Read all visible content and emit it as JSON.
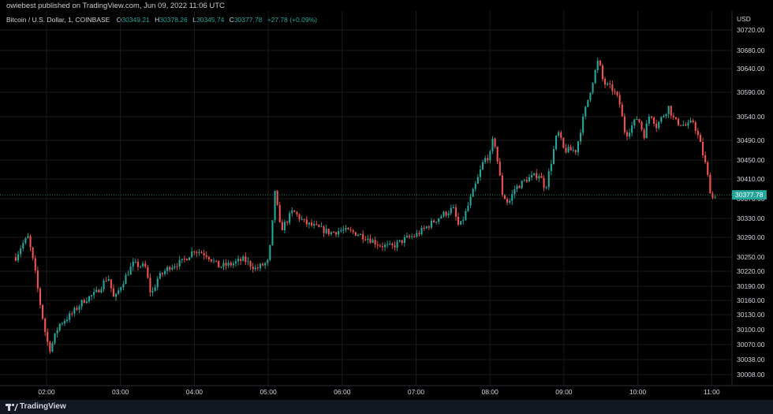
{
  "publisher": "owiebest published on TradingView.com, Jun 09, 2022 11:06 UTC",
  "legend": {
    "symbol": "Bitcoin / U.S. Dollar, 1, COINBASE",
    "o_label": "O",
    "o_value": "30349.21",
    "h_label": "H",
    "h_value": "30378.26",
    "l_label": "L",
    "l_value": "30345.74",
    "c_label": "C",
    "c_value": "30377.78",
    "change": "+27.78 (+0.09%)"
  },
  "currency": "USD",
  "footer": {
    "brand": "TradingView",
    "logo": "tradingview-logo-icon"
  },
  "colors": {
    "up": "#26a69a",
    "down": "#ef5350",
    "background": "#000000",
    "grid": "#1b1b1b",
    "last_price_tag": "#26a69a"
  },
  "chart_data": {
    "type": "candlestick",
    "symbol": "BTCUSD",
    "timeframe": "1",
    "y_ticks": [
      30720.0,
      30680.0,
      30640.0,
      30590.0,
      30540.0,
      30490.0,
      30450.0,
      30410.0,
      30370.0,
      30330.0,
      30290.0,
      30250.0,
      30220.0,
      30190.0,
      30160.0,
      30130.0,
      30100.0,
      30070.0,
      30038.0,
      30008.0
    ],
    "y_tick_labels": [
      "30720.00",
      "30680.00",
      "30640.00",
      "30590.00",
      "30540.00",
      "30490.00",
      "30450.00",
      "30410.00",
      "30370.00",
      "30330.00",
      "30290.00",
      "30250.00",
      "30220.00",
      "30190.00",
      "30160.00",
      "30130.00",
      "30100.00",
      "30070.00",
      "30038.00",
      "30008.00"
    ],
    "x_ticks": [
      "02:00",
      "03:00",
      "04:00",
      "05:00",
      "06:00",
      "07:00",
      "08:00",
      "09:00",
      "10:00",
      "11:00"
    ],
    "last_price": 30377.78,
    "last_price_label": "30377.78",
    "path": [
      [
        "01:35",
        30250
      ],
      [
        "01:40",
        30275
      ],
      [
        "01:45",
        30290
      ],
      [
        "01:50",
        30230
      ],
      [
        "01:55",
        30150
      ],
      [
        "02:00",
        30080
      ],
      [
        "02:03",
        30060
      ],
      [
        "02:10",
        30110
      ],
      [
        "02:20",
        30130
      ],
      [
        "02:30",
        30160
      ],
      [
        "02:40",
        30175
      ],
      [
        "02:50",
        30210
      ],
      [
        "02:55",
        30160
      ],
      [
        "03:00",
        30190
      ],
      [
        "03:10",
        30235
      ],
      [
        "03:20",
        30230
      ],
      [
        "03:25",
        30170
      ],
      [
        "03:30",
        30205
      ],
      [
        "03:40",
        30230
      ],
      [
        "03:50",
        30240
      ],
      [
        "04:00",
        30265
      ],
      [
        "04:10",
        30255
      ],
      [
        "04:20",
        30230
      ],
      [
        "04:30",
        30235
      ],
      [
        "04:40",
        30245
      ],
      [
        "04:50",
        30225
      ],
      [
        "05:00",
        30240
      ],
      [
        "05:03",
        30300
      ],
      [
        "05:05",
        30395
      ],
      [
        "05:10",
        30305
      ],
      [
        "05:20",
        30345
      ],
      [
        "05:30",
        30320
      ],
      [
        "05:40",
        30310
      ],
      [
        "05:50",
        30300
      ],
      [
        "06:00",
        30305
      ],
      [
        "06:10",
        30300
      ],
      [
        "06:20",
        30290
      ],
      [
        "06:30",
        30275
      ],
      [
        "06:40",
        30270
      ],
      [
        "06:50",
        30285
      ],
      [
        "07:00",
        30295
      ],
      [
        "07:10",
        30315
      ],
      [
        "07:20",
        30335
      ],
      [
        "07:30",
        30350
      ],
      [
        "07:35",
        30310
      ],
      [
        "07:40",
        30340
      ],
      [
        "07:50",
        30410
      ],
      [
        "07:55",
        30450
      ],
      [
        "08:00",
        30460
      ],
      [
        "08:03",
        30500
      ],
      [
        "08:10",
        30380
      ],
      [
        "08:15",
        30360
      ],
      [
        "08:20",
        30390
      ],
      [
        "08:30",
        30410
      ],
      [
        "08:40",
        30420
      ],
      [
        "08:45",
        30390
      ],
      [
        "08:50",
        30450
      ],
      [
        "08:55",
        30510
      ],
      [
        "09:00",
        30470
      ],
      [
        "09:10",
        30470
      ],
      [
        "09:15",
        30530
      ],
      [
        "09:20",
        30580
      ],
      [
        "09:25",
        30630
      ],
      [
        "09:28",
        30660
      ],
      [
        "09:32",
        30610
      ],
      [
        "09:40",
        30595
      ],
      [
        "09:45",
        30570
      ],
      [
        "09:50",
        30500
      ],
      [
        "09:55",
        30520
      ],
      [
        "10:00",
        30540
      ],
      [
        "10:05",
        30500
      ],
      [
        "10:10",
        30550
      ],
      [
        "10:15",
        30520
      ],
      [
        "10:20",
        30540
      ],
      [
        "10:25",
        30560
      ],
      [
        "10:30",
        30530
      ],
      [
        "10:40",
        30520
      ],
      [
        "10:45",
        30530
      ],
      [
        "10:50",
        30490
      ],
      [
        "10:55",
        30440
      ],
      [
        "11:00",
        30370
      ],
      [
        "11:03",
        30378
      ]
    ]
  }
}
